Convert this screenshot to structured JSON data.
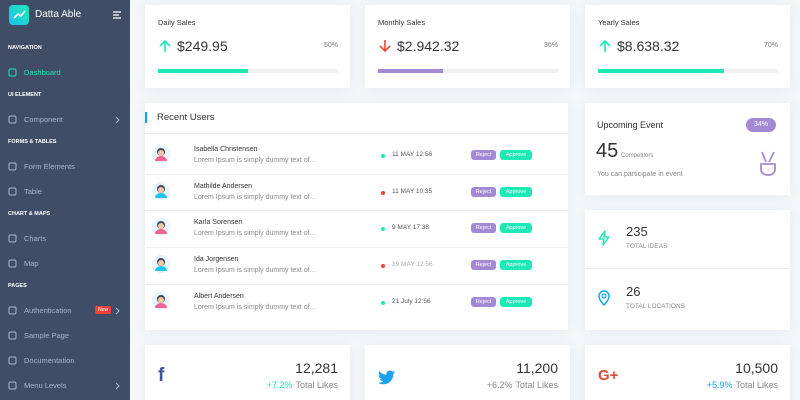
{
  "sidebar": {
    "brand": "Datta Able",
    "sections": [
      {
        "label": "NAVIGATION",
        "items": [
          {
            "label": "Dashboard"
          }
        ]
      },
      {
        "label": "UI ELEMENT",
        "items": [
          {
            "label": "Component"
          }
        ]
      },
      {
        "label": "FORMS & TABLES",
        "items": [
          {
            "label": "Form Elements"
          },
          {
            "label": "Table"
          }
        ]
      },
      {
        "label": "CHART & MAPS",
        "items": [
          {
            "label": "Charts"
          },
          {
            "label": "Map"
          }
        ]
      },
      {
        "label": "PAGES",
        "items": [
          {
            "label": "Authentication",
            "badge": "New"
          },
          {
            "label": "Sample Page"
          },
          {
            "label": "Documentation"
          },
          {
            "label": "Menu Levels"
          }
        ]
      }
    ]
  },
  "sales": [
    {
      "title": "Daily Sales",
      "value": "$249.95",
      "percent": "50%",
      "color": "#1de9b6"
    },
    {
      "title": "Monthly Sales",
      "value": "$2.942.32",
      "percent": "36%",
      "color": "#a389d4"
    },
    {
      "title": "Yearly Sales",
      "value": "$8.638.32",
      "percent": "70%",
      "color": "#1de9b6"
    }
  ],
  "recent_users": {
    "title": "Recent Users",
    "reject": "Reject",
    "approve": "Approve",
    "rows": [
      {
        "name": "Isabella Christensen",
        "text": "Lorem Ipsum is simply dummy text of…",
        "date": "11 MAY 12:56",
        "dot": "#1de9b6"
      },
      {
        "name": "Mathilde Andersen",
        "text": "Lorem Ipsum is simply dummy text of…",
        "date": "11 MAY 10:35",
        "dot": "#f44236"
      },
      {
        "name": "Karla Sorensen",
        "text": "Lorem Ipsum is simply dummy text of…",
        "date": "9 MAY 17:38",
        "dot": "#1de9b6"
      },
      {
        "name": "Ida Jorgensen",
        "text": "Lorem Ipsum is simply dummy text of…",
        "date": "19 MAY 12:56",
        "dot": "#f44236"
      },
      {
        "name": "Albert Andersen",
        "text": "Lorem Ipsum is simply dummy text of…",
        "date": "21 July 12:56",
        "dot": "#1de9b6"
      }
    ]
  },
  "event": {
    "title": "Upcoming Event",
    "badge": "34%",
    "count": "45",
    "count_label": "Competitors",
    "text": "You can participate in event"
  },
  "stats": [
    {
      "value": "235",
      "label": "TOTAL IDEAS"
    },
    {
      "value": "26",
      "label": "TOTAL LOCATIONS"
    }
  ],
  "social": [
    {
      "icon": "f",
      "value": "12,281",
      "growth": "+7.2%",
      "label": "Total Likes",
      "color": "#1de9b6"
    },
    {
      "icon": "",
      "value": "11,200",
      "growth": "+6.2%",
      "label": "Total Likes",
      "color": "#888"
    },
    {
      "icon": "G+",
      "value": "10,500",
      "growth": "+5.9%",
      "label": "Total Likes",
      "color": "#04a9f5"
    }
  ]
}
